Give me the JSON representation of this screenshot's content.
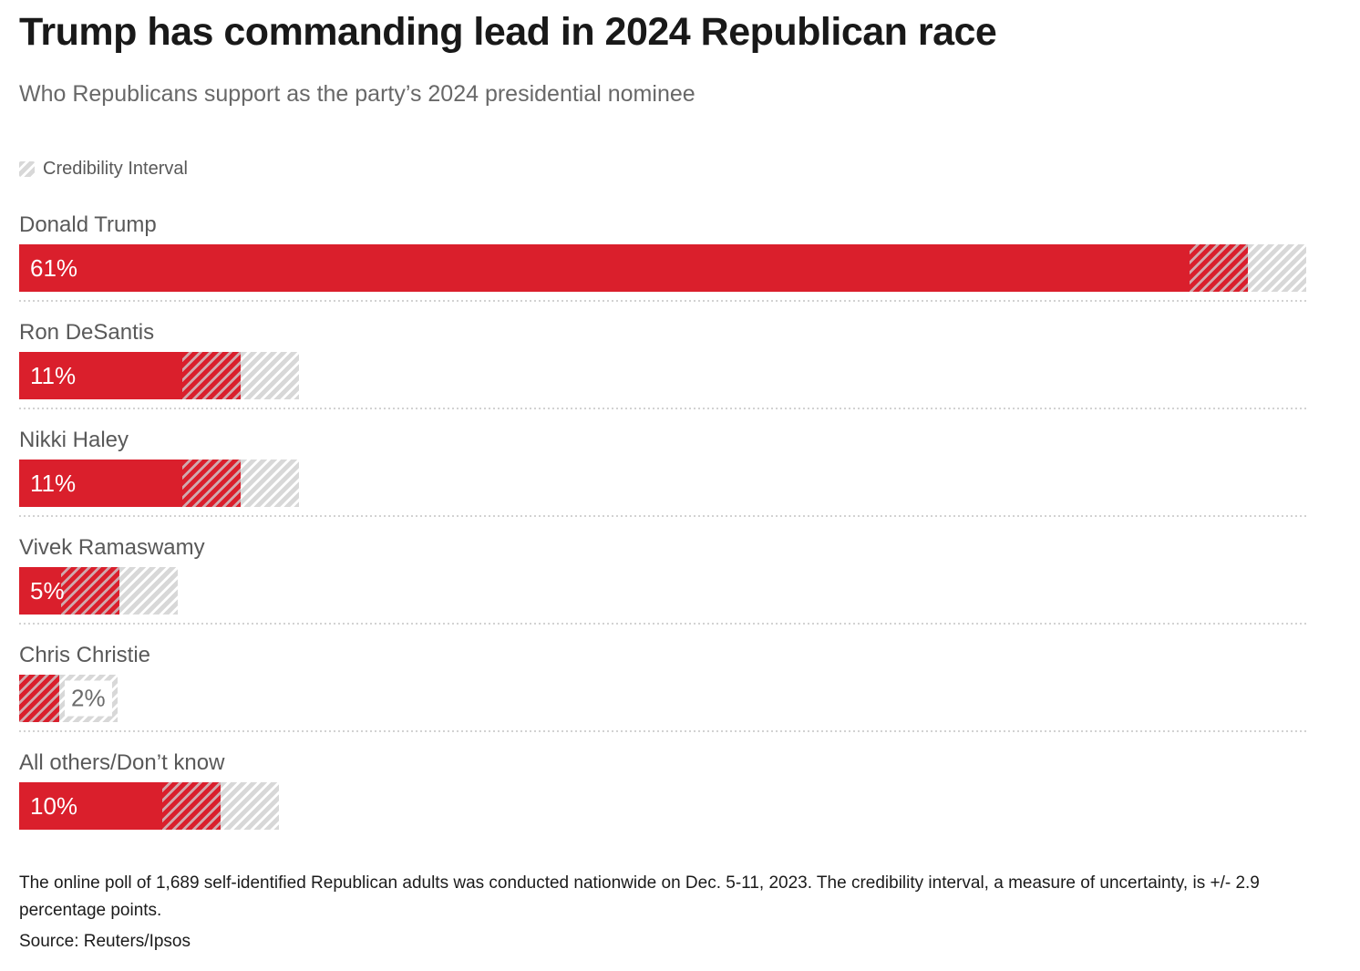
{
  "header": {
    "title": "Trump has commanding lead in 2024 Republican race",
    "subtitle": "Who Republicans support as the party’s 2024 presidential nominee"
  },
  "legend": {
    "label": "Credibility Interval"
  },
  "chart_data": {
    "type": "bar",
    "orientation": "horizontal",
    "title": "Trump has commanding lead in 2024 Republican race",
    "subtitle": "Who Republicans support as the party’s 2024 presidential nominee",
    "legend_entries": [
      "Credibility Interval"
    ],
    "categories": [
      "Donald Trump",
      "Ron DeSantis",
      "Nikki Haley",
      "Vivek Ramaswamy",
      "Chris Christie",
      "All others/Don’t know"
    ],
    "values": [
      61,
      11,
      11,
      5,
      2,
      10
    ],
    "value_labels": [
      "61%",
      "11%",
      "11%",
      "5%",
      "2%",
      "10%"
    ],
    "credibility_interval": 2.9,
    "axis_max": 63.9,
    "xlabel": "",
    "ylabel": "",
    "grid": false,
    "colors": {
      "bar": "#da1f2c",
      "ci_lower_hatch_light": "#cfa9ae",
      "ci_upper_hatch": "#d8d8d8"
    }
  },
  "footer": {
    "note": "The online poll of 1,689 self-identified Republican adults was conducted nationwide on Dec. 5-11, 2023. The credibility interval, a measure of uncertainty, is +/- 2.9 percentage points.",
    "source": "Source: Reuters/Ipsos"
  }
}
